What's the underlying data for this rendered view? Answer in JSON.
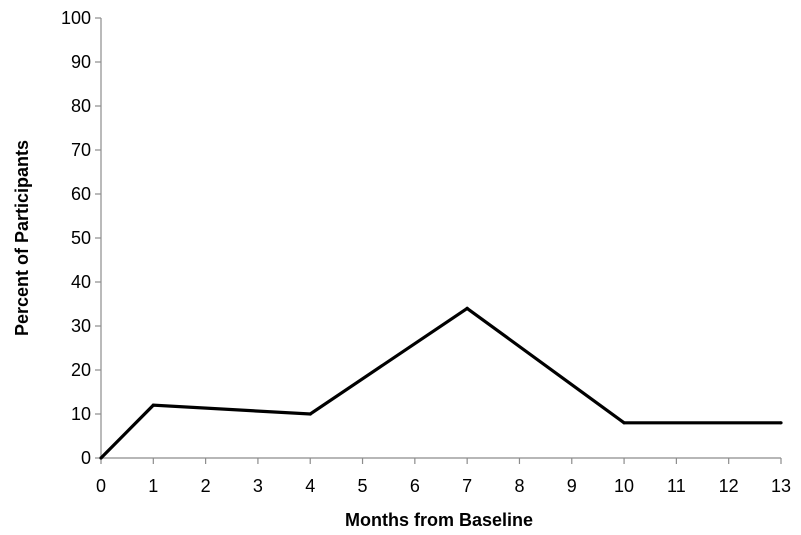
{
  "chart_data": {
    "type": "line",
    "title": "",
    "xlabel": "Months from Baseline",
    "ylabel": "Percent of Participants",
    "xlim": [
      0,
      13
    ],
    "ylim": [
      0,
      100
    ],
    "x_ticks": [
      0,
      1,
      2,
      3,
      4,
      5,
      6,
      7,
      8,
      9,
      10,
      11,
      12,
      13
    ],
    "y_ticks": [
      0,
      10,
      20,
      30,
      40,
      50,
      60,
      70,
      80,
      90,
      100
    ],
    "grid": false,
    "legend": "none",
    "series": [
      {
        "color": "#000000",
        "x": [
          0,
          1,
          4,
          7,
          10,
          13
        ],
        "y": [
          0,
          12,
          10,
          34,
          8,
          8
        ]
      }
    ]
  }
}
